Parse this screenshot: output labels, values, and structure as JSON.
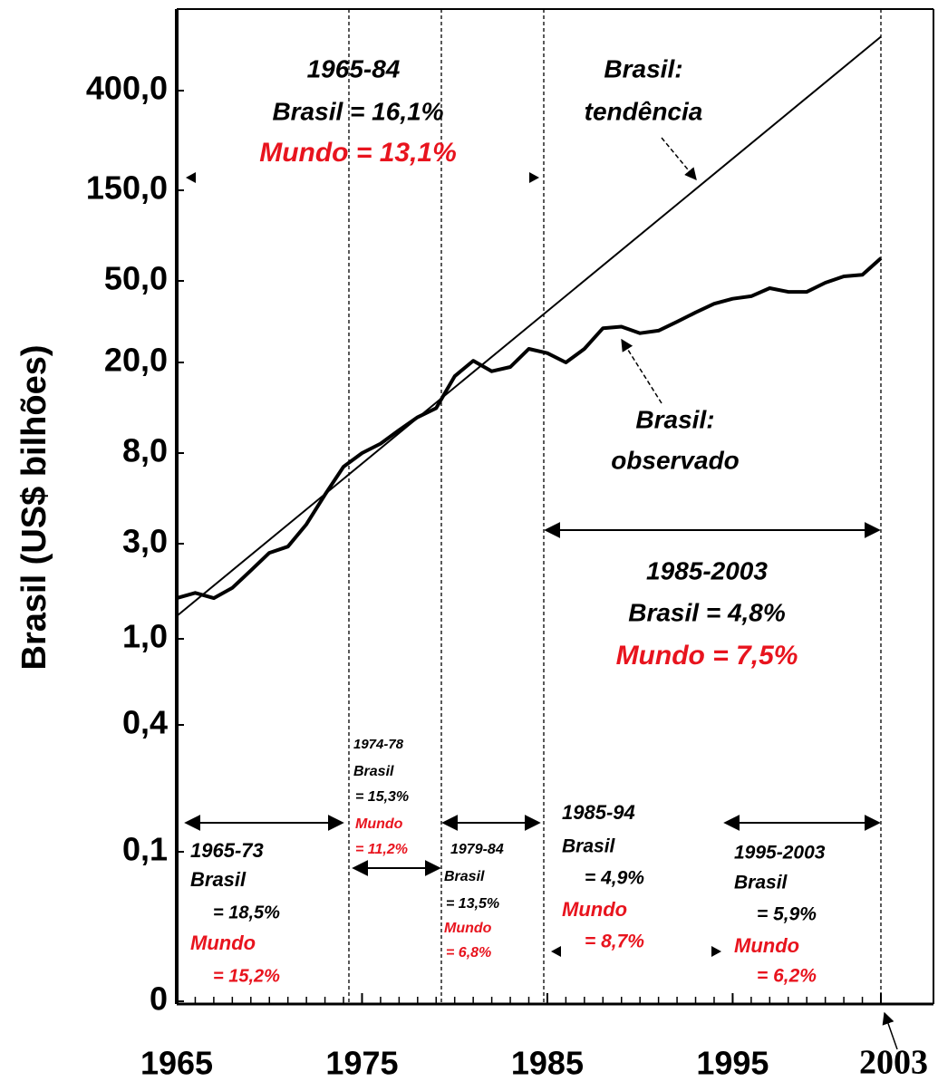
{
  "chart_data": {
    "type": "line",
    "y_axis_label": "Brasil (US$ bilhões)",
    "xlim": [
      1965,
      2003
    ],
    "xticks": [
      1965,
      1975,
      1985,
      1995,
      2003
    ],
    "yticks": [
      {
        "value": 0,
        "label": "0"
      },
      {
        "value": 0.1,
        "label": "0,1"
      },
      {
        "value": 0.4,
        "label": "0,4"
      },
      {
        "value": 1,
        "label": "1,0"
      },
      {
        "value": 3,
        "label": "3,0"
      },
      {
        "value": 8,
        "label": "8,0"
      },
      {
        "value": 20,
        "label": "20,0"
      },
      {
        "value": 50,
        "label": "50,0"
      },
      {
        "value": 150,
        "label": "150,0"
      },
      {
        "value": 400,
        "label": "400,0"
      }
    ],
    "series": [
      {
        "color": "#000000",
        "x": [
          1965,
          2003
        ],
        "values": [
          1.3,
          680
        ]
      },
      {
        "color": "#000000",
        "x": [
          1965,
          1966,
          1967,
          1968,
          1969,
          1970,
          1971,
          1972,
          1973,
          1974,
          1975,
          1976,
          1977,
          1978,
          1979,
          1980,
          1981,
          1982,
          1983,
          1984,
          1985,
          1986,
          1987,
          1988,
          1989,
          1990,
          1991,
          1992,
          1993,
          1994,
          1995,
          1996,
          1997,
          1998,
          1999,
          2000,
          2001,
          2002,
          2003
        ],
        "values": [
          1.6,
          1.7,
          1.6,
          1.8,
          2.2,
          2.7,
          2.9,
          3.7,
          5.1,
          6.9,
          8,
          8.8,
          10.1,
          11.5,
          12.6,
          17.4,
          20.4,
          18.3,
          19.1,
          23.3,
          22.2,
          20,
          23.3,
          29.4,
          29.9,
          27.8,
          28.6,
          31.6,
          35.1,
          38.7,
          40.9,
          42.1,
          46.1,
          44.2,
          44.2,
          49,
          52.8,
          53.9,
          65.8
        ]
      }
    ],
    "annotations": [
      {
        "text": "1965-84",
        "color": "#000000"
      },
      {
        "text": "Brasil = 16,1%",
        "color": "#000000"
      },
      {
        "text": "Mundo = 13,1%",
        "color": "#e8141e"
      },
      {
        "text": "Brasil:",
        "color": "#000000"
      },
      {
        "text": "tendência",
        "color": "#000000"
      },
      {
        "text": "Brasil:",
        "color": "#000000"
      },
      {
        "text": "observado",
        "color": "#000000"
      },
      {
        "text": "1985-2003",
        "color": "#000000"
      },
      {
        "text": "Brasil = 4,8%",
        "color": "#000000"
      },
      {
        "text": "Mundo = 7,5%",
        "color": "#e8141e"
      },
      {
        "text": "1974-78",
        "color": "#000000"
      },
      {
        "text": "Brasil",
        "color": "#000000"
      },
      {
        "text": "= 15,3%",
        "color": "#000000"
      },
      {
        "text": "Mundo",
        "color": "#e8141e"
      },
      {
        "text": "= 11,2%",
        "color": "#e8141e"
      },
      {
        "text": "1965-73",
        "color": "#000000"
      },
      {
        "text": "Brasil",
        "color": "#000000"
      },
      {
        "text": "= 18,5%",
        "color": "#000000"
      },
      {
        "text": "Mundo",
        "color": "#e8141e"
      },
      {
        "text": "= 15,2%",
        "color": "#e8141e"
      },
      {
        "text": "1979-84",
        "color": "#000000"
      },
      {
        "text": "Brasil",
        "color": "#000000"
      },
      {
        "text": "= 13,5%",
        "color": "#000000"
      },
      {
        "text": "Mundo",
        "color": "#e8141e"
      },
      {
        "text": "= 6,8%",
        "color": "#e8141e"
      },
      {
        "text": "1985-94",
        "color": "#000000"
      },
      {
        "text": "Brasil",
        "color": "#000000"
      },
      {
        "text": "= 4,9%",
        "color": "#000000"
      },
      {
        "text": "Mundo",
        "color": "#e8141e"
      },
      {
        "text": "= 8,7%",
        "color": "#e8141e"
      },
      {
        "text": "1995-2003",
        "color": "#000000"
      },
      {
        "text": "Brasil",
        "color": "#000000"
      },
      {
        "text": "= 5,9%",
        "color": "#000000"
      },
      {
        "text": "Mundo",
        "color": "#e8141e"
      },
      {
        "text": "= 6,2%",
        "color": "#e8141e"
      }
    ]
  }
}
